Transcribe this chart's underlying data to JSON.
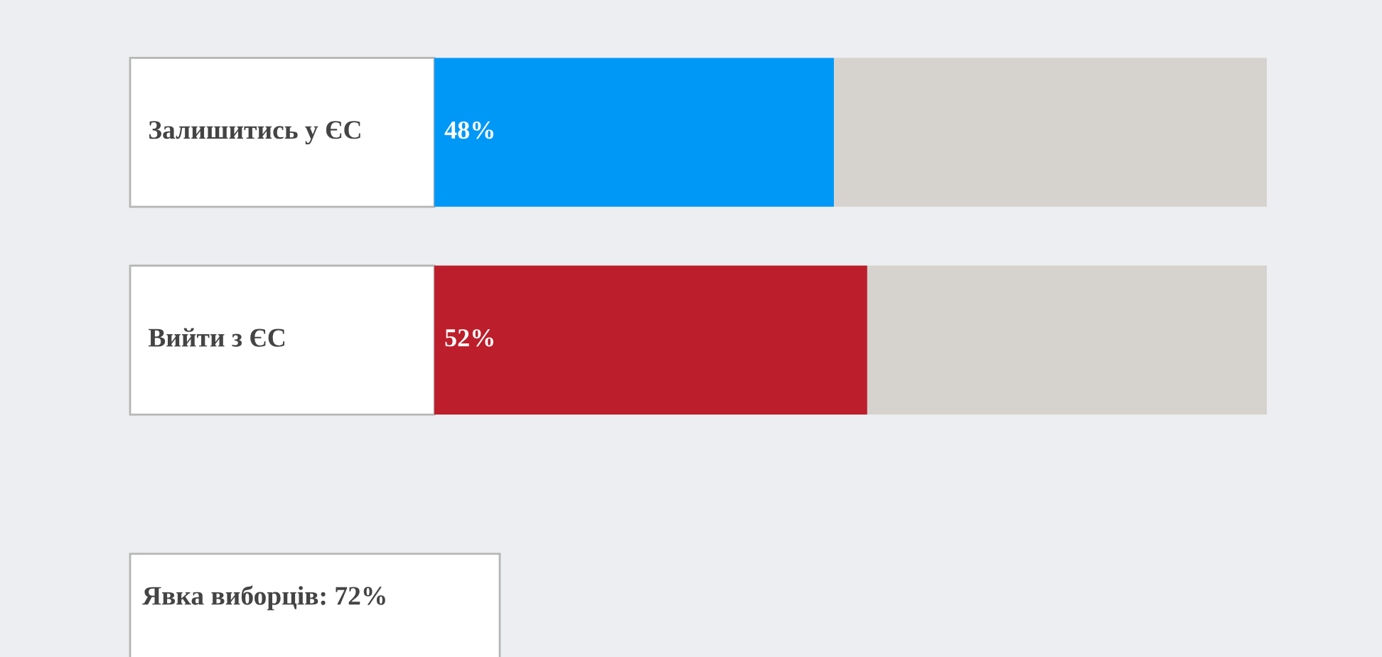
{
  "chart_data": {
    "type": "bar",
    "orientation": "horizontal",
    "stacked": true,
    "categories": [
      "Залишитись у ЄС",
      "Вийти з ЄС"
    ],
    "series": [
      {
        "colors": [
          "#0098f7",
          "#bd1e2b"
        ],
        "values": [
          48,
          52
        ],
        "value_labels": [
          "48%",
          "52%"
        ]
      },
      {
        "color": "#d6d3ce",
        "values": [
          52,
          48
        ],
        "value_labels": [
          null,
          null
        ]
      }
    ],
    "xlim": [
      0,
      100
    ],
    "annotations": [
      "Явка виборців: 72%"
    ]
  }
}
